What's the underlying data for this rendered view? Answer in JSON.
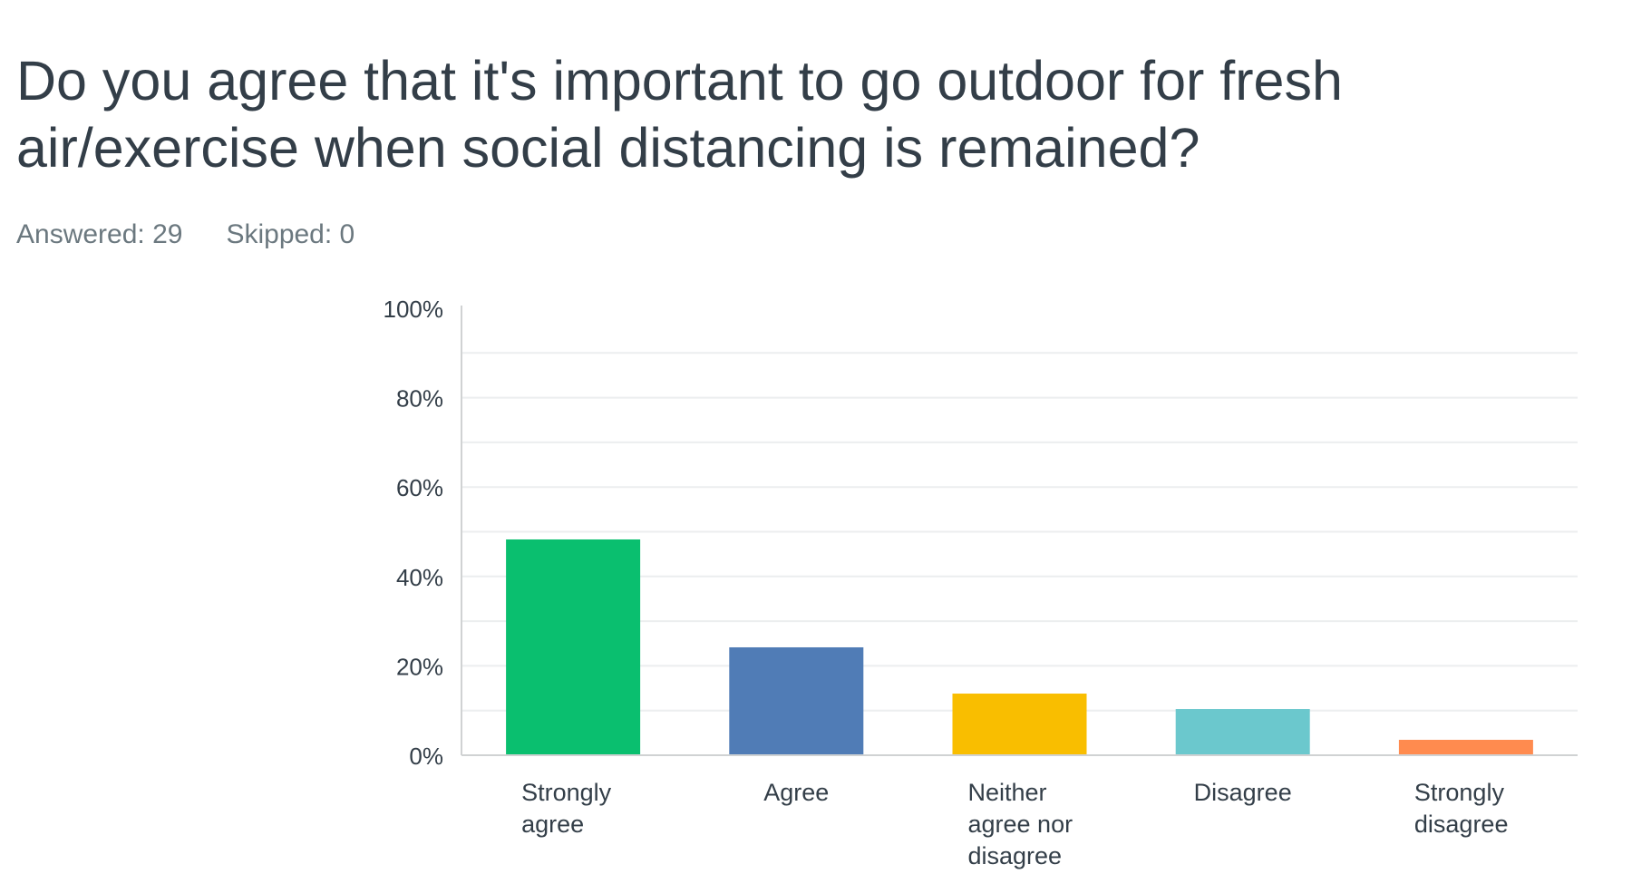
{
  "question": {
    "title": "Do you agree that it's important to go outdoor for fresh air/exercise when social distancing is remained?",
    "answered_label": "Answered: 29",
    "skipped_label": "Skipped: 0"
  },
  "chart_data": {
    "type": "bar",
    "categories": [
      [
        "Strongly",
        "agree"
      ],
      [
        "Agree"
      ],
      [
        "Neither",
        "agree nor",
        "disagree"
      ],
      [
        "Disagree"
      ],
      [
        "Strongly",
        "disagree"
      ]
    ],
    "values": [
      48.28,
      24.14,
      13.79,
      10.34,
      3.45
    ],
    "colors": [
      "#0abf6f",
      "#507cb6",
      "#f9be00",
      "#6bc8cd",
      "#ff8b4f"
    ],
    "yticks": [
      "0%",
      "20%",
      "40%",
      "60%",
      "80%",
      "100%"
    ],
    "ylim": [
      0,
      100
    ],
    "ytick_step": 20,
    "minor_grid_step": 10,
    "grid": true,
    "grid_color": "#eceeef",
    "axis_color": "#d0d2d3"
  }
}
